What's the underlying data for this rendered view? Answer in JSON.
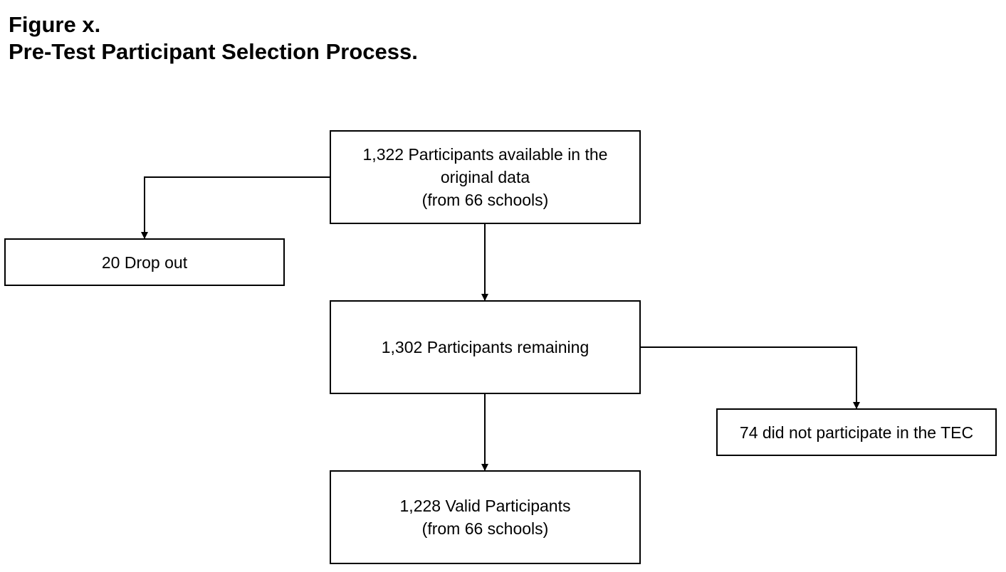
{
  "heading": {
    "figure_label": "Figure x.",
    "title": "Pre-Test Participant Selection Process."
  },
  "nodes": {
    "start": {
      "lines": [
        "1,322 Participants available in the",
        "original data",
        "(from 66 schools)"
      ]
    },
    "dropout": {
      "lines": [
        "20 Drop out"
      ]
    },
    "remaining": {
      "lines": [
        "1,302 Participants remaining"
      ]
    },
    "tec": {
      "lines": [
        "74 did not participate in the TEC"
      ]
    },
    "valid": {
      "lines": [
        "1,228 Valid Participants",
        "(from 66 schools)"
      ]
    }
  },
  "edges": [
    {
      "from": "start",
      "to": "dropout"
    },
    {
      "from": "start",
      "to": "remaining"
    },
    {
      "from": "remaining",
      "to": "tec"
    },
    {
      "from": "remaining",
      "to": "valid"
    }
  ],
  "colors": {
    "stroke": "#000000",
    "background": "#ffffff"
  }
}
